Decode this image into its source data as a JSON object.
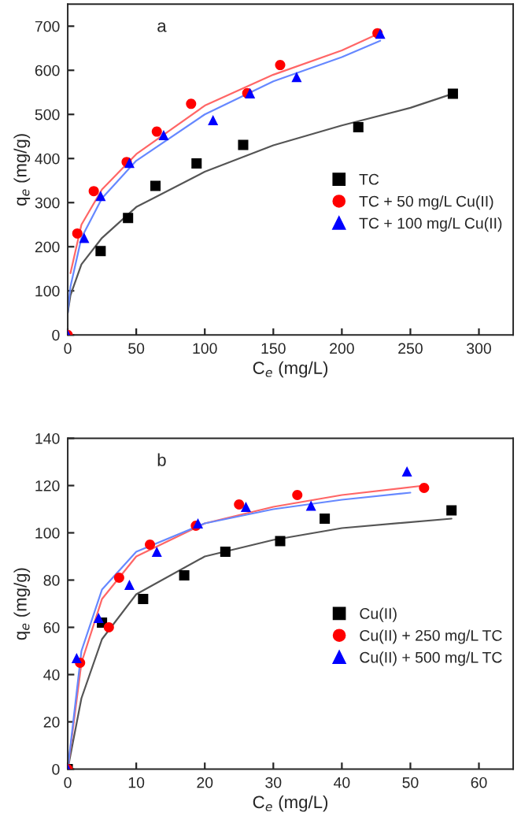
{
  "chart_data": [
    {
      "type": "scatter",
      "annotations": [
        "a"
      ],
      "xlabel": "C$_{e}$ (mg/L)",
      "ylabel": "q$_{e}$ (mg/g)",
      "xlim": [
        0,
        325
      ],
      "ylim": [
        0,
        750
      ],
      "xticks": [
        0,
        50,
        100,
        150,
        200,
        250,
        300
      ],
      "yticks": [
        0,
        100,
        200,
        300,
        400,
        500,
        600,
        700
      ],
      "grid": false,
      "legend": "right",
      "series": [
        {
          "name": "TC",
          "color": "#000000",
          "marker": "square",
          "x": [
            24,
            44,
            64,
            94,
            128,
            212,
            281
          ],
          "values": [
            190,
            265,
            338,
            389,
            431,
            471,
            547
          ]
        },
        {
          "name": "TC + 50 mg/L Cu(II)",
          "color": "#ff0000",
          "marker": "circle",
          "x": [
            0,
            7,
            19,
            43,
            65,
            90,
            131,
            155,
            226
          ],
          "values": [
            0,
            230,
            326,
            392,
            461,
            524,
            548,
            612,
            684
          ]
        },
        {
          "name": "TC + 100 mg/L Cu(II)",
          "color": "#0000ff",
          "marker": "triangle",
          "x": [
            0,
            12,
            24,
            45,
            70,
            106,
            133,
            167,
            228
          ],
          "values": [
            0,
            220,
            315,
            390,
            453,
            487,
            548,
            585,
            683
          ]
        },
        {
          "type": "line",
          "color": "#555555",
          "x": [
            0,
            2,
            10,
            25,
            50,
            100,
            150,
            200,
            250,
            282
          ],
          "values": [
            50,
            90,
            160,
            220,
            290,
            370,
            430,
            475,
            515,
            548
          ]
        },
        {
          "type": "line",
          "color": "#ff6666",
          "x": [
            2,
            10,
            25,
            50,
            100,
            150,
            200,
            228
          ],
          "values": [
            140,
            250,
            330,
            410,
            520,
            590,
            645,
            685
          ]
        },
        {
          "type": "line",
          "color": "#6688ff",
          "x": [
            0,
            2,
            10,
            25,
            50,
            100,
            150,
            200,
            228
          ],
          "values": [
            50,
            110,
            220,
            310,
            395,
            500,
            575,
            630,
            667
          ]
        }
      ]
    },
    {
      "type": "scatter",
      "annotations": [
        "b"
      ],
      "xlabel": "C$_{e}$ (mg/L)",
      "ylabel": "q$_{e}$ (mg/g)",
      "xlim": [
        0,
        65
      ],
      "ylim": [
        0,
        140
      ],
      "xticks": [
        0,
        10,
        20,
        30,
        40,
        50,
        60
      ],
      "yticks": [
        0,
        20,
        40,
        60,
        80,
        100,
        120,
        140
      ],
      "grid": false,
      "legend": "right",
      "series": [
        {
          "name": "Cu(II)",
          "color": "#000000",
          "marker": "square",
          "x": [
            0,
            5,
            11,
            17,
            23,
            31,
            37.5,
            56
          ],
          "values": [
            0,
            62,
            72,
            82,
            92,
            96.5,
            106,
            109.5
          ]
        },
        {
          "name": "Cu(II) + 250 mg/L TC",
          "color": "#ff0000",
          "marker": "circle",
          "x": [
            0,
            1.8,
            6,
            7.5,
            12,
            18.7,
            25,
            33.5,
            52
          ],
          "values": [
            0,
            45,
            60,
            81,
            95,
            103,
            112,
            116,
            119
          ]
        },
        {
          "name": "Cu(II) + 500 mg/L TC",
          "color": "#0000ff",
          "marker": "triangle",
          "x": [
            0,
            1.3,
            4.5,
            9,
            13,
            19,
            26,
            35.5,
            49.5
          ],
          "values": [
            0,
            47,
            64,
            78,
            92,
            104,
            111,
            111.5,
            126
          ]
        },
        {
          "type": "line",
          "color": "#555555",
          "x": [
            0,
            2,
            5,
            10,
            20,
            30,
            40,
            56
          ],
          "values": [
            0,
            30,
            55,
            74,
            90,
            97,
            102,
            106
          ]
        },
        {
          "type": "line",
          "color": "#ff6666",
          "x": [
            0,
            2,
            5,
            10,
            20,
            30,
            40,
            52
          ],
          "values": [
            0,
            45,
            72,
            90,
            104,
            111,
            116,
            120
          ]
        },
        {
          "type": "line",
          "color": "#6688ff",
          "x": [
            0,
            2,
            5,
            10,
            20,
            30,
            40,
            50
          ],
          "values": [
            0,
            50,
            76,
            92,
            104,
            110,
            114,
            117
          ]
        }
      ]
    }
  ]
}
